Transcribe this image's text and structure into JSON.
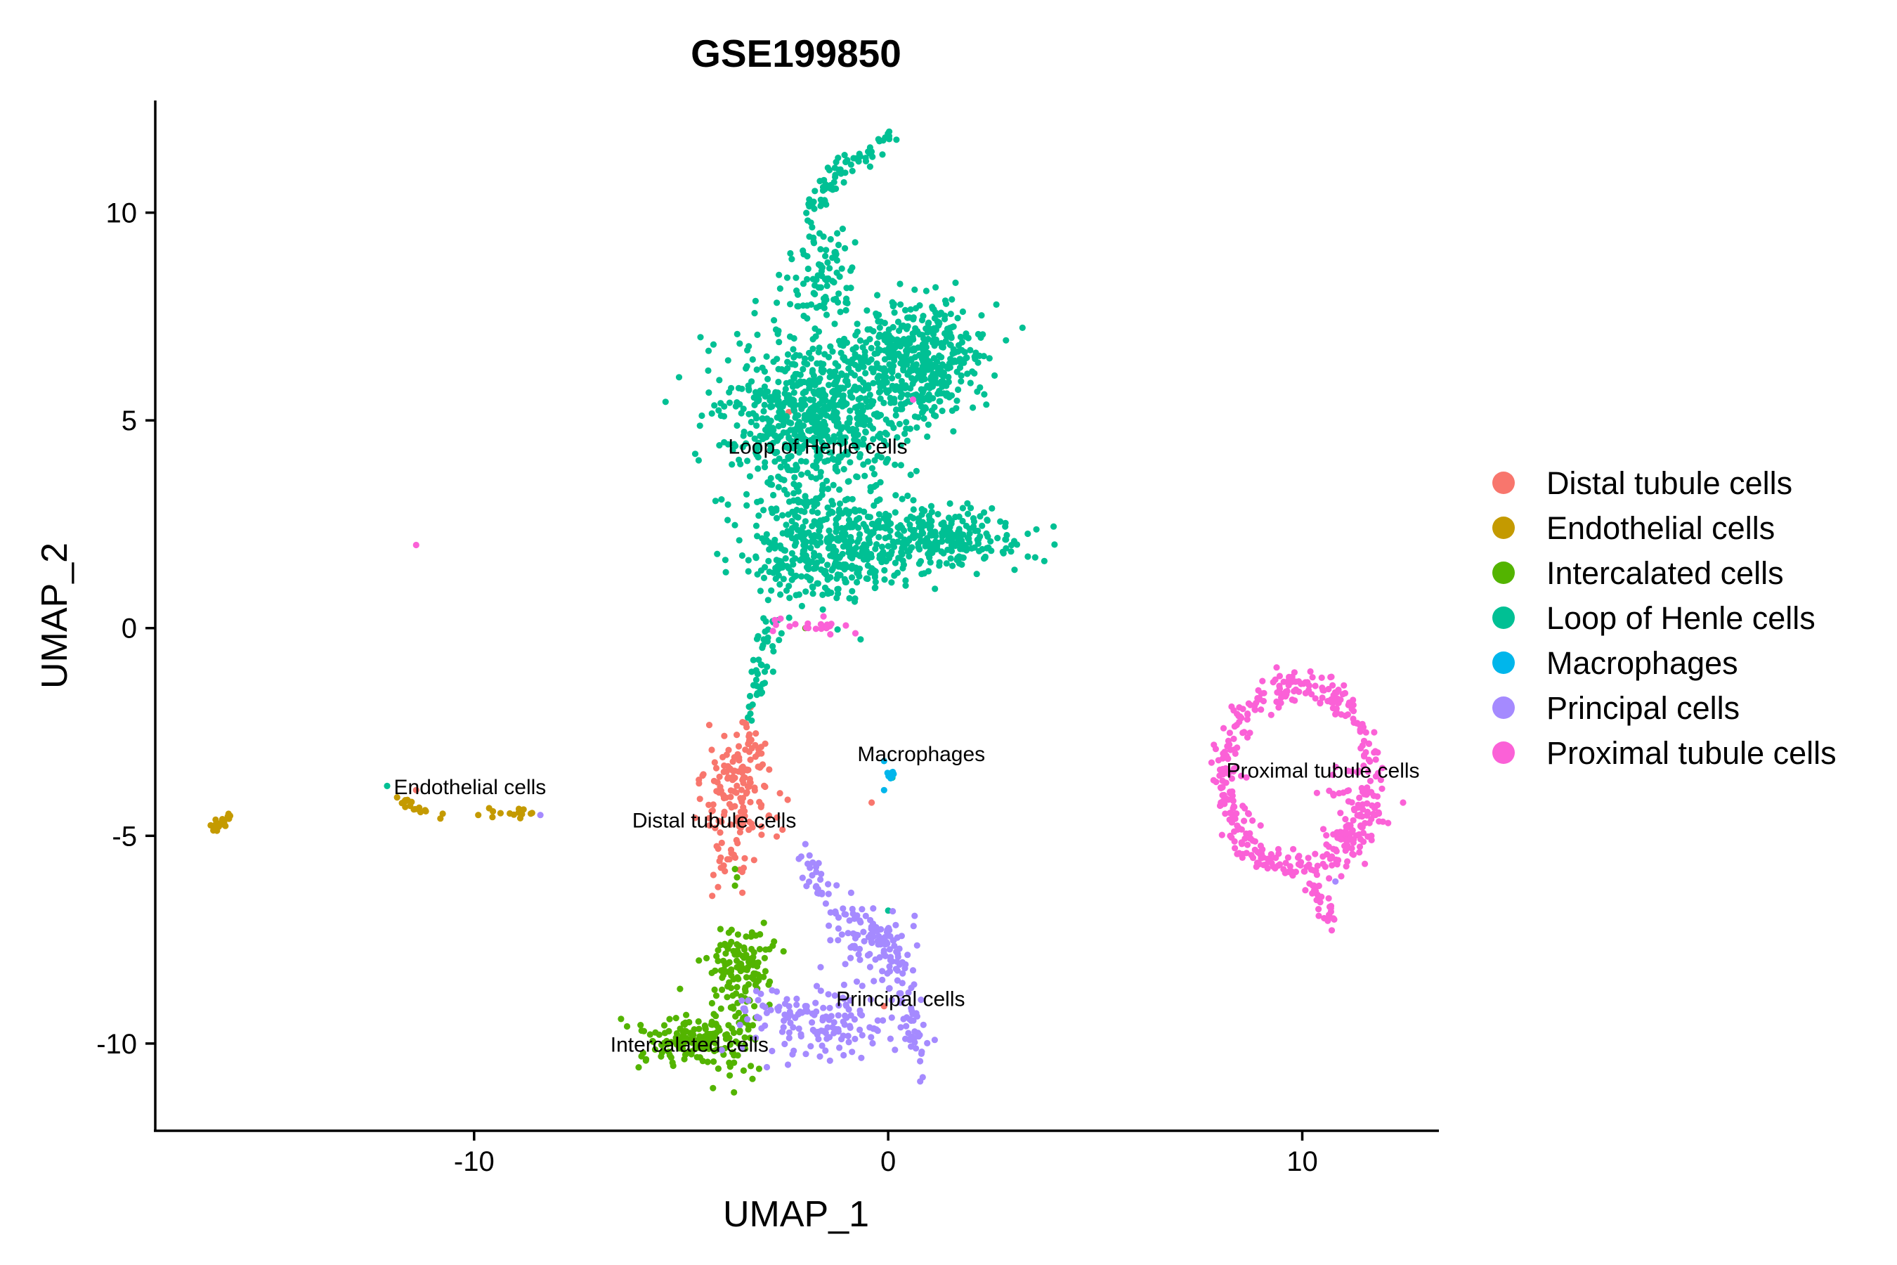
{
  "chart_data": {
    "type": "scatter",
    "title": "GSE199850",
    "xlabel": "UMAP_1",
    "ylabel": "UMAP_2",
    "xlim": [
      -17.7,
      13.3
    ],
    "ylim": [
      -12.1,
      12.7
    ],
    "x_ticks": [
      {
        "value": -10,
        "label": "-10"
      },
      {
        "value": 0,
        "label": "0"
      },
      {
        "value": 10,
        "label": "10"
      }
    ],
    "y_ticks": [
      {
        "value": 10,
        "label": "10"
      },
      {
        "value": 5,
        "label": "5"
      },
      {
        "value": 0,
        "label": "0"
      },
      {
        "value": -5,
        "label": "-5"
      },
      {
        "value": -10,
        "label": "-10"
      }
    ],
    "grid": false,
    "legend_position": "right",
    "series": [
      {
        "name": "Distal tubule cells",
        "color": "#F8766D",
        "label_pos": [
          -4.2,
          -4.8
        ],
        "regions": [
          {
            "shape": "blob",
            "center": [
              -3.6,
              -4.0
            ],
            "spread": [
              0.45,
              0.85
            ],
            "n": 140
          },
          {
            "shape": "blob",
            "center": [
              -3.8,
              -5.4
            ],
            "spread": [
              0.25,
              0.5
            ],
            "n": 25
          },
          {
            "shape": "line",
            "from": [
              -3.4,
              -2.2
            ],
            "to": [
              -3.3,
              -3.0
            ],
            "jitter": 0.12,
            "n": 12
          }
        ],
        "points": [
          [
            -0.4,
            -4.2
          ],
          [
            -0.1,
            -9.1
          ],
          [
            -11.4,
            -3.9
          ],
          [
            -2.4,
            5.2
          ]
        ]
      },
      {
        "name": "Endothelial cells",
        "color": "#C49A00",
        "label_pos": [
          -10.1,
          -4.0
        ],
        "regions": [
          {
            "shape": "line",
            "from": [
              -16.3,
              -4.85
            ],
            "to": [
              -15.9,
              -4.5
            ],
            "jitter": 0.05,
            "n": 25
          },
          {
            "shape": "line",
            "from": [
              -11.8,
              -4.1
            ],
            "to": [
              -10.7,
              -4.6
            ],
            "jitter": 0.08,
            "n": 18
          },
          {
            "shape": "line",
            "from": [
              -9.6,
              -4.5
            ],
            "to": [
              -8.8,
              -4.4
            ],
            "jitter": 0.06,
            "n": 12
          }
        ],
        "points": [
          [
            -9.9,
            -4.5
          ],
          [
            -8.6,
            -4.45
          ]
        ]
      },
      {
        "name": "Intercalated cells",
        "color": "#53B400",
        "label_pos": [
          -4.8,
          -10.2
        ],
        "regions": [
          {
            "shape": "blob",
            "center": [
              -3.6,
              -8.2
            ],
            "spread": [
              0.4,
              0.45
            ],
            "n": 110
          },
          {
            "shape": "blob",
            "center": [
              -4.6,
              -9.9
            ],
            "spread": [
              0.6,
              0.35
            ],
            "n": 150
          },
          {
            "shape": "blob",
            "center": [
              -3.6,
              -9.3
            ],
            "spread": [
              0.3,
              0.8
            ],
            "n": 40
          }
        ],
        "points": [
          [
            -3.7,
            -5.8
          ],
          [
            -3.65,
            -6.0
          ],
          [
            -3.7,
            -6.2
          ],
          [
            -2.0,
            0.0
          ]
        ]
      },
      {
        "name": "Loop of Henle cells",
        "color": "#00C094",
        "label_pos": [
          -1.7,
          4.2
        ],
        "regions": [
          {
            "shape": "blob",
            "center": [
              -1.8,
              5.2
            ],
            "spread": [
              1.1,
              0.9
            ],
            "n": 700
          },
          {
            "shape": "blob",
            "center": [
              0.7,
              6.5
            ],
            "spread": [
              0.8,
              0.7
            ],
            "n": 450
          },
          {
            "shape": "blob",
            "center": [
              -1.5,
              2.0
            ],
            "spread": [
              1.1,
              0.7
            ],
            "n": 450
          },
          {
            "shape": "blob",
            "center": [
              1.4,
              2.2
            ],
            "spread": [
              0.9,
              0.4
            ],
            "n": 250
          },
          {
            "shape": "blob",
            "center": [
              -1.6,
              8.5
            ],
            "spread": [
              0.4,
              0.7
            ],
            "n": 90
          },
          {
            "shape": "line",
            "from": [
              -1.8,
              10.0
            ],
            "to": [
              -1.2,
              11.1
            ],
            "jitter": 0.15,
            "n": 40
          },
          {
            "shape": "line",
            "from": [
              -1.2,
              11.0
            ],
            "to": [
              0.0,
              11.8
            ],
            "jitter": 0.12,
            "n": 30
          },
          {
            "shape": "line",
            "from": [
              -2.8,
              0.3
            ],
            "to": [
              -3.2,
              -1.5
            ],
            "jitter": 0.12,
            "n": 40
          },
          {
            "shape": "line",
            "from": [
              -3.2,
              -1.5
            ],
            "to": [
              -3.35,
              -2.2
            ],
            "jitter": 0.06,
            "n": 8
          }
        ],
        "points": [
          [
            -12.1,
            -3.8
          ],
          [
            0.0,
            -6.8
          ],
          [
            0.1,
            -3.6
          ]
        ]
      },
      {
        "name": "Macrophages",
        "color": "#00B6EB",
        "label_pos": [
          0.8,
          -3.2
        ],
        "regions": [
          {
            "shape": "blob",
            "center": [
              0.05,
              -3.55
            ],
            "spread": [
              0.06,
              0.08
            ],
            "n": 8
          }
        ],
        "points": [
          [
            -0.1,
            -3.2
          ],
          [
            -0.1,
            -3.9
          ]
        ]
      },
      {
        "name": "Principal cells",
        "color": "#A58AFF",
        "label_pos": [
          0.3,
          -9.1
        ],
        "regions": [
          {
            "shape": "line",
            "from": [
              -2.2,
              -5.5
            ],
            "to": [
              -0.3,
              -7.5
            ],
            "jitter": 0.2,
            "n": 50
          },
          {
            "shape": "blob",
            "center": [
              -0.4,
              -7.5
            ],
            "spread": [
              0.5,
              0.35
            ],
            "n": 60
          },
          {
            "shape": "blob",
            "center": [
              -1.6,
              -9.4
            ],
            "spread": [
              0.9,
              0.45
            ],
            "n": 130
          },
          {
            "shape": "line",
            "from": [
              -0.1,
              -7.3
            ],
            "to": [
              0.9,
              -10.6
            ],
            "jitter": 0.22,
            "n": 80
          },
          {
            "shape": "blob",
            "center": [
              -2.8,
              -9.2
            ],
            "spread": [
              0.4,
              0.3
            ],
            "n": 20
          }
        ],
        "points": [
          [
            -8.4,
            -4.5
          ],
          [
            10.8,
            -6.1
          ],
          [
            -2.0,
            -5.2
          ],
          [
            -2.1,
            -5.5
          ]
        ]
      },
      {
        "name": "Proximal tubule cells",
        "color": "#FB61D7",
        "label_pos": [
          10.5,
          -3.6
        ],
        "regions": [
          {
            "shape": "ring",
            "center": [
              9.9,
              -3.6
            ],
            "radius": [
              1.75,
              2.2
            ],
            "jitter": 0.18,
            "n": 380
          },
          {
            "shape": "line",
            "from": [
              10.1,
              -5.8
            ],
            "to": [
              10.7,
              -7.1
            ],
            "jitter": 0.1,
            "n": 30
          },
          {
            "shape": "blob",
            "center": [
              11.2,
              -4.5
            ],
            "spread": [
              0.4,
              0.6
            ],
            "n": 60
          },
          {
            "shape": "blob",
            "center": [
              -2.0,
              0.05
            ],
            "spread": [
              0.5,
              0.12
            ],
            "n": 22
          }
        ],
        "points": [
          [
            -11.4,
            2.0
          ],
          [
            0.6,
            5.5
          ]
        ]
      }
    ]
  }
}
